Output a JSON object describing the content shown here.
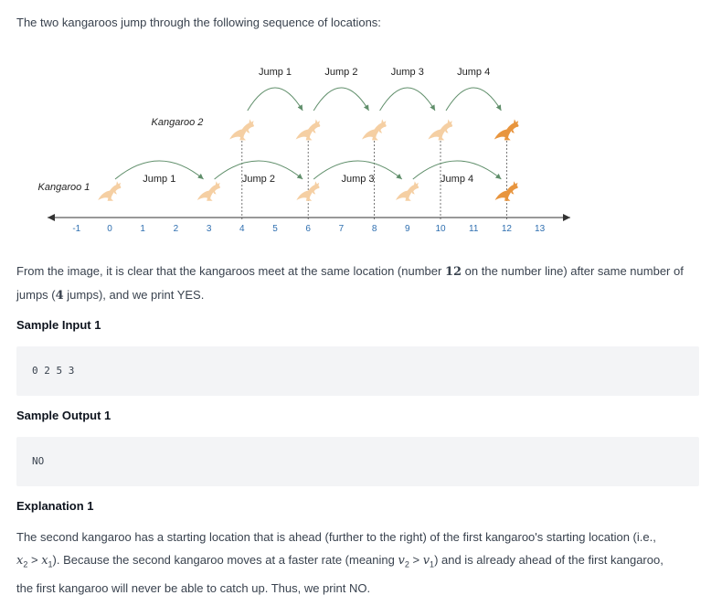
{
  "intro": "The two kangaroos jump through the following sequence of locations:",
  "diagram": {
    "kangaroo1_label": "Kangaroo 1",
    "kangaroo2_label": "Kangaroo 2",
    "top_jumps": [
      "Jump 1",
      "Jump 2",
      "Jump 3",
      "Jump 4"
    ],
    "bottom_jumps": [
      "Jump 1",
      "Jump 2",
      "Jump 3",
      "Jump 4"
    ],
    "number_line": [
      "-1",
      "0",
      "1",
      "2",
      "3",
      "4",
      "5",
      "6",
      "7",
      "8",
      "9",
      "10",
      "11",
      "12",
      "13"
    ],
    "kangaroo1_positions": [
      0,
      3,
      6,
      9,
      12
    ],
    "kangaroo2_positions": [
      4,
      6,
      8,
      10,
      12
    ],
    "meet_position": 12,
    "colors": {
      "kangaroo_faded": "#f5cfa3",
      "kangaroo_final": "#e8953e",
      "arc": "#5f8e6a",
      "dashed": "#555555",
      "tick_label": "#2f6fb0"
    }
  },
  "para1": {
    "a": "From the image, it is clear that the kangaroos meet at the same location (number ",
    "num": "12",
    "b": " on the number line) after same number of",
    "c": "jumps (",
    "num2": "4",
    "d": " jumps), and we print YES."
  },
  "sample_input_heading": "Sample Input 1",
  "sample_input": "0 2 5 3",
  "sample_output_heading": "Sample Output 1",
  "sample_output": "NO",
  "explanation_heading": "Explanation 1",
  "explanation": {
    "line1": "The second kangaroo has a starting location that is ahead (further to the right) of the first kangaroo's starting location (i.e.,",
    "x2": "x",
    "x2sub": "2",
    "gt1": " > ",
    "x1": "x",
    "x1sub": "1",
    "t1": "). Because the second kangaroo moves at a faster rate (meaning ",
    "v2": "v",
    "v2sub": "2",
    "gt2": " > ",
    "v1": "v",
    "v1sub": "1",
    "t2": ") and is already ahead of the first kangaroo,",
    "line3": "the first kangaroo will never be able to catch up. Thus, we print NO."
  }
}
